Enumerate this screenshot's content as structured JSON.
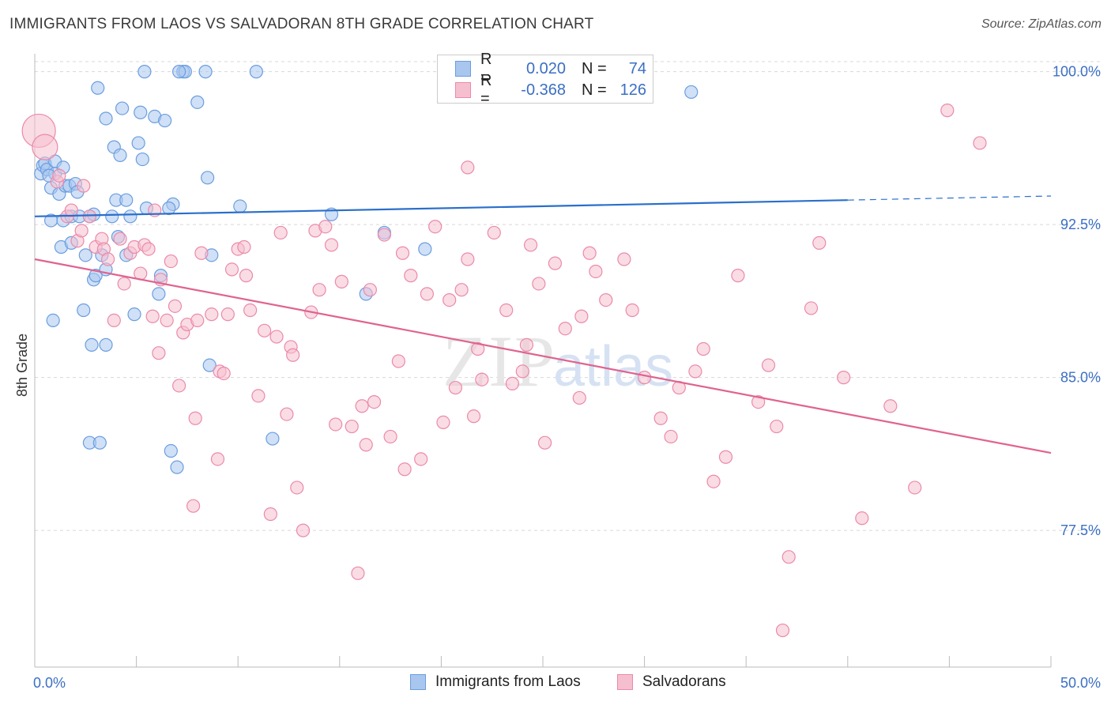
{
  "title": "IMMIGRANTS FROM LAOS VS SALVADORAN 8TH GRADE CORRELATION CHART",
  "source": "Source: ZipAtlas.com",
  "watermark": "ZIPatlas",
  "colors": {
    "blue_fill": "#a9c6ee",
    "blue_stroke": "#6a9ee0",
    "blue_line": "#2a6fcb",
    "pink_fill": "#f6bfd0",
    "pink_stroke": "#eb8aa9",
    "pink_line": "#e0638f",
    "tick_label": "#3b6fc4",
    "grid": "#d8d8d8"
  },
  "legend": {
    "rows": [
      {
        "r_label": "R =",
        "r_value": "0.020",
        "n_label": "N =",
        "n_value": "74"
      },
      {
        "r_label": "R =",
        "r_value": "-0.368",
        "n_label": "N =",
        "n_value": "126"
      }
    ]
  },
  "bottom_legend": [
    "Immigrants from Laos",
    "Salvadorans"
  ],
  "chart_data": {
    "type": "scatter",
    "title": "IMMIGRANTS FROM LAOS VS SALVADORAN 8TH GRADE CORRELATION CHART",
    "xlabel": "",
    "ylabel": "8th Grade",
    "xlim": [
      0,
      50
    ],
    "ylim": [
      70.8,
      100.8
    ],
    "x_tick_labels": [
      {
        "value": 0,
        "label": "0.0%"
      },
      {
        "value": 50,
        "label": "50.0%"
      }
    ],
    "x_minor_ticks": [
      0,
      5,
      10,
      15,
      20,
      25,
      30,
      35,
      40,
      45,
      50
    ],
    "y_ticks": [
      {
        "value": 100.0,
        "label": "100.0%"
      },
      {
        "value": 92.5,
        "label": "92.5%"
      },
      {
        "value": 85.0,
        "label": "85.0%"
      },
      {
        "value": 77.5,
        "label": "77.5%"
      }
    ],
    "grid": true,
    "legend_position": "top-center",
    "series": [
      {
        "name": "Immigrants from Laos",
        "color": "blue",
        "trend": {
          "x0": 0,
          "y0": 92.9,
          "x1": 40,
          "y1": 93.7,
          "dash_to_x": 50,
          "dash_to_y": 93.9
        },
        "points": [
          [
            0.3,
            95.0
          ],
          [
            0.4,
            95.4
          ],
          [
            0.5,
            95.5
          ],
          [
            0.6,
            95.2
          ],
          [
            0.8,
            94.3
          ],
          [
            0.8,
            92.7
          ],
          [
            1.0,
            95.6
          ],
          [
            1.0,
            95.0
          ],
          [
            1.2,
            94.0
          ],
          [
            1.3,
            91.4
          ],
          [
            1.4,
            95.3
          ],
          [
            1.4,
            92.7
          ],
          [
            1.5,
            94.4
          ],
          [
            1.7,
            94.4
          ],
          [
            1.8,
            91.6
          ],
          [
            1.8,
            92.9
          ],
          [
            2.0,
            94.5
          ],
          [
            2.1,
            94.1
          ],
          [
            2.2,
            92.9
          ],
          [
            2.4,
            88.3
          ],
          [
            2.5,
            91.0
          ],
          [
            2.7,
            92.9
          ],
          [
            2.8,
            86.6
          ],
          [
            2.9,
            89.8
          ],
          [
            3.0,
            90.0
          ],
          [
            3.1,
            99.2
          ],
          [
            3.3,
            91.0
          ],
          [
            3.5,
            97.7
          ],
          [
            3.5,
            90.3
          ],
          [
            3.5,
            86.6
          ],
          [
            3.8,
            92.9
          ],
          [
            3.9,
            96.3
          ],
          [
            4.0,
            93.7
          ],
          [
            4.1,
            91.9
          ],
          [
            4.2,
            95.9
          ],
          [
            4.3,
            98.2
          ],
          [
            4.5,
            93.7
          ],
          [
            4.5,
            91.0
          ],
          [
            4.7,
            92.9
          ],
          [
            4.9,
            88.1
          ],
          [
            5.1,
            96.5
          ],
          [
            5.2,
            98.0
          ],
          [
            5.3,
            95.7
          ],
          [
            5.5,
            93.3
          ],
          [
            5.9,
            97.8
          ],
          [
            6.1,
            89.1
          ],
          [
            6.2,
            90.0
          ],
          [
            6.4,
            97.6
          ],
          [
            6.8,
            93.5
          ],
          [
            7.0,
            80.6
          ],
          [
            7.3,
            100.0
          ],
          [
            8.0,
            98.5
          ],
          [
            8.5,
            94.8
          ],
          [
            8.7,
            91.0
          ],
          [
            10.1,
            93.4
          ],
          [
            11.7,
            82.0
          ],
          [
            14.6,
            93.0
          ],
          [
            16.3,
            89.1
          ],
          [
            17.2,
            92.1
          ],
          [
            19.2,
            91.3
          ],
          [
            32.3,
            99.0
          ],
          [
            0.9,
            87.8
          ],
          [
            2.7,
            81.8
          ],
          [
            3.2,
            81.8
          ],
          [
            6.7,
            81.4
          ],
          [
            8.6,
            85.6
          ],
          [
            5.4,
            100.0
          ],
          [
            7.4,
            100.0
          ],
          [
            7.1,
            100.0
          ],
          [
            8.4,
            100.0
          ],
          [
            10.9,
            100.0
          ],
          [
            6.6,
            93.3
          ],
          [
            0.7,
            94.9
          ],
          [
            2.9,
            93.0
          ]
        ]
      },
      {
        "name": "Salvadorans",
        "color": "pink",
        "trend": {
          "x0": 0,
          "y0": 90.8,
          "x1": 50,
          "y1": 81.3
        },
        "points": [
          [
            0.2,
            97.1
          ],
          [
            0.5,
            96.3
          ],
          [
            1.1,
            94.6
          ],
          [
            1.2,
            94.9
          ],
          [
            1.6,
            92.9
          ],
          [
            1.8,
            93.2
          ],
          [
            2.1,
            91.7
          ],
          [
            2.3,
            92.2
          ],
          [
            2.4,
            94.4
          ],
          [
            2.7,
            92.9
          ],
          [
            3.0,
            91.4
          ],
          [
            3.3,
            91.8
          ],
          [
            3.4,
            91.3
          ],
          [
            3.6,
            90.8
          ],
          [
            3.9,
            87.8
          ],
          [
            4.2,
            91.8
          ],
          [
            4.4,
            89.6
          ],
          [
            4.7,
            91.1
          ],
          [
            4.9,
            91.4
          ],
          [
            5.2,
            90.1
          ],
          [
            5.4,
            91.5
          ],
          [
            5.6,
            91.3
          ],
          [
            5.8,
            88.0
          ],
          [
            5.9,
            93.2
          ],
          [
            6.1,
            86.2
          ],
          [
            6.2,
            89.8
          ],
          [
            6.5,
            87.8
          ],
          [
            6.7,
            90.7
          ],
          [
            6.9,
            88.5
          ],
          [
            7.1,
            84.6
          ],
          [
            7.3,
            87.2
          ],
          [
            7.5,
            87.6
          ],
          [
            7.9,
            83.0
          ],
          [
            8.0,
            87.8
          ],
          [
            8.2,
            91.1
          ],
          [
            8.7,
            88.1
          ],
          [
            9.1,
            85.3
          ],
          [
            9.3,
            85.2
          ],
          [
            9.5,
            88.1
          ],
          [
            9.7,
            90.3
          ],
          [
            10.0,
            91.3
          ],
          [
            10.4,
            90.0
          ],
          [
            10.6,
            88.3
          ],
          [
            11.0,
            84.1
          ],
          [
            11.3,
            87.3
          ],
          [
            11.6,
            78.3
          ],
          [
            11.9,
            87.0
          ],
          [
            12.1,
            92.1
          ],
          [
            12.4,
            83.2
          ],
          [
            12.6,
            86.5
          ],
          [
            12.7,
            86.1
          ],
          [
            13.2,
            77.5
          ],
          [
            13.6,
            88.2
          ],
          [
            13.8,
            92.2
          ],
          [
            14.0,
            89.3
          ],
          [
            14.3,
            92.4
          ],
          [
            14.6,
            91.5
          ],
          [
            14.8,
            82.7
          ],
          [
            15.1,
            89.7
          ],
          [
            15.6,
            82.6
          ],
          [
            15.9,
            75.4
          ],
          [
            16.1,
            83.6
          ],
          [
            16.3,
            81.7
          ],
          [
            16.5,
            89.3
          ],
          [
            16.7,
            83.8
          ],
          [
            17.2,
            92.0
          ],
          [
            17.5,
            82.1
          ],
          [
            17.9,
            85.8
          ],
          [
            18.1,
            91.1
          ],
          [
            18.5,
            90.0
          ],
          [
            19.0,
            81.0
          ],
          [
            19.3,
            89.1
          ],
          [
            19.7,
            92.4
          ],
          [
            20.1,
            82.8
          ],
          [
            20.4,
            88.8
          ],
          [
            20.7,
            84.5
          ],
          [
            21.0,
            89.3
          ],
          [
            21.3,
            90.8
          ],
          [
            21.6,
            83.1
          ],
          [
            21.8,
            86.4
          ],
          [
            22.0,
            84.9
          ],
          [
            22.6,
            92.1
          ],
          [
            23.2,
            88.3
          ],
          [
            23.5,
            84.7
          ],
          [
            24.0,
            85.3
          ],
          [
            24.4,
            91.5
          ],
          [
            24.8,
            89.6
          ],
          [
            25.1,
            81.8
          ],
          [
            25.6,
            90.6
          ],
          [
            26.1,
            87.4
          ],
          [
            26.9,
            88.0
          ],
          [
            27.3,
            91.1
          ],
          [
            27.6,
            90.2
          ],
          [
            28.1,
            88.8
          ],
          [
            29.0,
            90.8
          ],
          [
            29.4,
            88.3
          ],
          [
            30.0,
            85.0
          ],
          [
            30.8,
            83.0
          ],
          [
            31.3,
            82.1
          ],
          [
            31.7,
            84.5
          ],
          [
            32.5,
            85.3
          ],
          [
            32.9,
            86.4
          ],
          [
            33.4,
            79.9
          ],
          [
            34.0,
            81.1
          ],
          [
            34.6,
            90.0
          ],
          [
            35.6,
            83.8
          ],
          [
            36.1,
            85.6
          ],
          [
            36.8,
            72.6
          ],
          [
            37.1,
            76.2
          ],
          [
            38.2,
            88.4
          ],
          [
            38.6,
            91.6
          ],
          [
            39.8,
            85.0
          ],
          [
            40.7,
            78.1
          ],
          [
            42.1,
            83.6
          ],
          [
            43.3,
            79.6
          ],
          [
            44.9,
            98.1
          ],
          [
            46.5,
            96.5
          ],
          [
            10.3,
            91.4
          ],
          [
            12.9,
            79.6
          ],
          [
            9.0,
            81.0
          ],
          [
            18.2,
            80.5
          ],
          [
            26.8,
            84.0
          ],
          [
            36.5,
            82.6
          ],
          [
            24.2,
            86.6
          ],
          [
            21.3,
            95.3
          ],
          [
            7.8,
            78.7
          ]
        ]
      }
    ]
  }
}
